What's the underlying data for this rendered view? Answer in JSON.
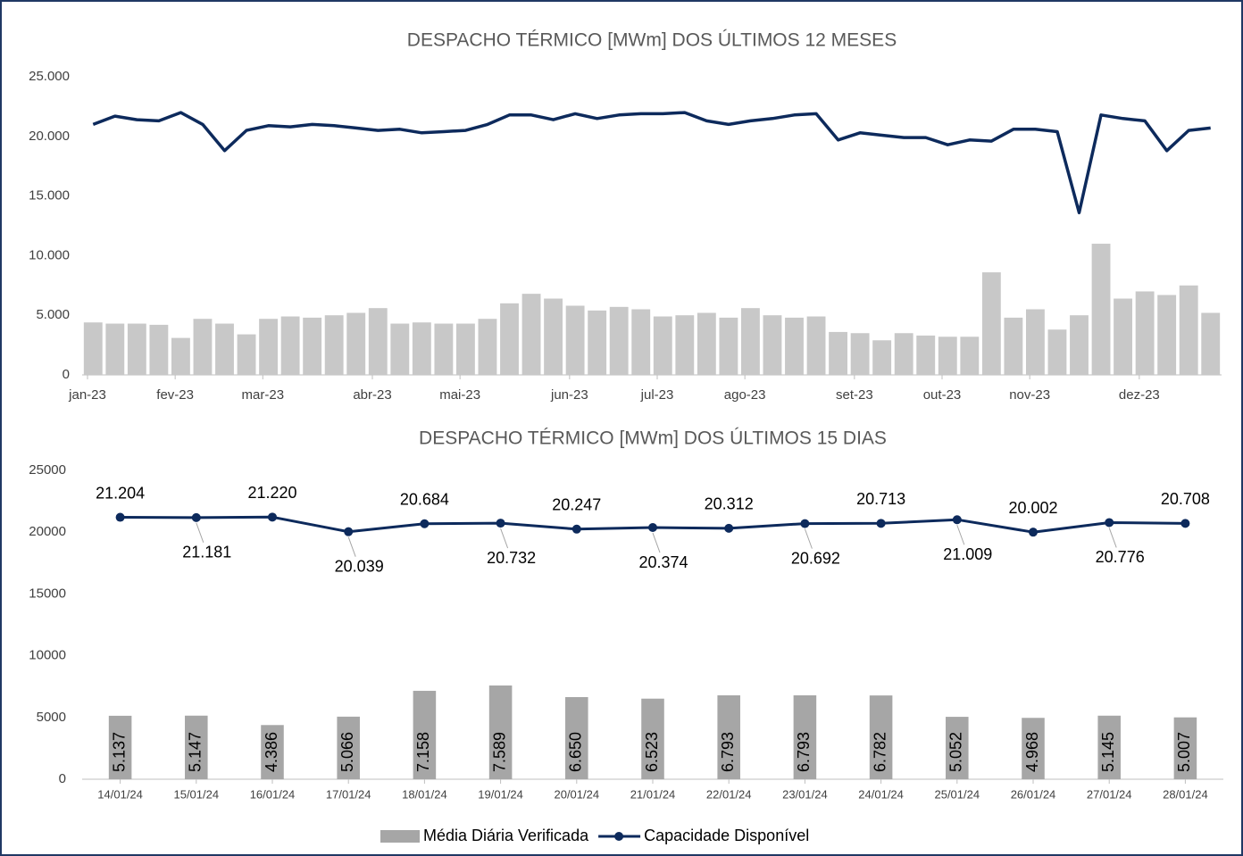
{
  "chart_data": [
    {
      "type": "combo",
      "title": "DESPACHO TÉRMICO [MWm] DOS ÚLTIMOS 12 MESES",
      "categories": [
        "jan-23",
        null,
        null,
        null,
        "fev-23",
        null,
        null,
        null,
        "mar-23",
        null,
        null,
        null,
        null,
        "abr-23",
        null,
        null,
        null,
        "mai-23",
        null,
        null,
        null,
        null,
        "jun-23",
        null,
        null,
        null,
        "jul-23",
        null,
        null,
        null,
        "ago-23",
        null,
        null,
        null,
        null,
        "set-23",
        null,
        null,
        null,
        "out-23",
        null,
        null,
        null,
        "nov-23",
        null,
        null,
        null,
        null,
        "dez-23",
        null,
        null,
        null
      ],
      "series": [
        {
          "kind": "bar",
          "color": "#c8c8c8",
          "values": [
            4400,
            4300,
            4300,
            4200,
            3100,
            4700,
            4300,
            3400,
            4700,
            4900,
            4800,
            5000,
            5200,
            5600,
            4300,
            4400,
            4300,
            4300,
            4700,
            6000,
            6800,
            6400,
            5800,
            5400,
            5700,
            5500,
            4900,
            5000,
            5200,
            4800,
            5600,
            5000,
            4800,
            4900,
            3600,
            3500,
            2900,
            3500,
            3300,
            3200,
            3200,
            8600,
            4800,
            5500,
            3800,
            5000,
            11000,
            6400,
            7000,
            6700,
            7500,
            5200
          ]
        },
        {
          "kind": "line",
          "color": "#0d2a5c",
          "values": [
            21000,
            21700,
            21400,
            21300,
            22000,
            21000,
            18800,
            20500,
            20900,
            20800,
            21000,
            20900,
            20700,
            20500,
            20600,
            20300,
            20400,
            20500,
            21000,
            21800,
            21800,
            21400,
            21900,
            21500,
            21800,
            21900,
            21900,
            22000,
            21300,
            21000,
            21300,
            21500,
            21800,
            21900,
            19700,
            20300,
            20100,
            19900,
            19900,
            19300,
            19700,
            19600,
            20600,
            20600,
            20400,
            13600,
            21800,
            21500,
            21300,
            18800,
            20500,
            20700
          ]
        }
      ],
      "ylim": [
        0,
        25000
      ],
      "yticks": [
        0,
        {
          "value": 5000,
          "label": "5.000"
        },
        {
          "value": 10000,
          "label": "10.000"
        },
        {
          "value": 15000,
          "label": "15.000"
        },
        {
          "value": 20000,
          "label": "20.000"
        },
        {
          "value": 25000,
          "label": "25.000"
        }
      ]
    },
    {
      "type": "combo",
      "title": "DESPACHO TÉRMICO [MWm] DOS ÚLTIMOS 15 DIAS",
      "categories": [
        "14/01/24",
        "15/01/24",
        "16/01/24",
        "17/01/24",
        "18/01/24",
        "19/01/24",
        "20/01/24",
        "21/01/24",
        "22/01/24",
        "23/01/24",
        "24/01/24",
        "25/01/24",
        "26/01/24",
        "27/01/24",
        "28/01/24"
      ],
      "series": [
        {
          "kind": "bar",
          "name": "Média Diária Verificada",
          "color": "#a6a6a6",
          "values": [
            5137,
            5147,
            4386,
            5066,
            7158,
            7589,
            6650,
            6523,
            6793,
            6793,
            6782,
            5052,
            4968,
            5145,
            5007
          ],
          "value_labels": [
            "5.137",
            "5.147",
            "4.386",
            "5.066",
            "7.158",
            "7.589",
            "6.650",
            "6.523",
            "6.793",
            "6.793",
            "6.782",
            "5.052",
            "4.968",
            "5.145",
            "5.007"
          ]
        },
        {
          "kind": "line",
          "name": "Capacidade Disponível",
          "color": "#0d2a5c",
          "values": [
            21204,
            21181,
            21220,
            20039,
            20684,
            20732,
            20247,
            20374,
            20312,
            20692,
            20713,
            21009,
            20002,
            20776,
            20708
          ],
          "value_labels": [
            "21.204",
            "21.181",
            "21.220",
            "20.039",
            "20.684",
            "20.732",
            "20.247",
            "20.374",
            "20.312",
            "20.692",
            "20.713",
            "21.009",
            "20.002",
            "20.776",
            "20.708"
          ]
        }
      ],
      "ylim": [
        0,
        25000
      ],
      "yticks": [
        0,
        5000,
        10000,
        15000,
        20000,
        25000
      ],
      "legend": "bottom"
    }
  ]
}
